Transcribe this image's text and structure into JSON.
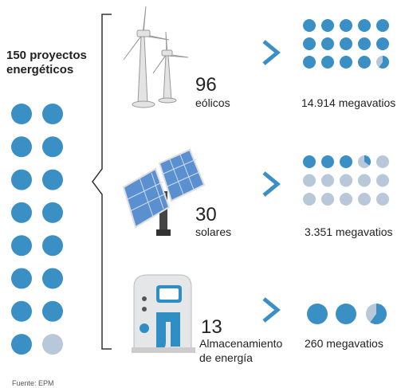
{
  "header": {
    "title_line1": "150 proyectos",
    "title_line2": "energéticos"
  },
  "items": [
    {
      "count": "96",
      "label": "eólicos",
      "capacity": "14.914 megavatios"
    },
    {
      "count": "30",
      "label": "solares",
      "capacity": "3.351 megavatios"
    },
    {
      "count": "13",
      "label_line1": "Almacenamiento",
      "label_line2": "de energía",
      "capacity": "260 megavatios"
    }
  ],
  "source": "Fuente: EPM"
}
